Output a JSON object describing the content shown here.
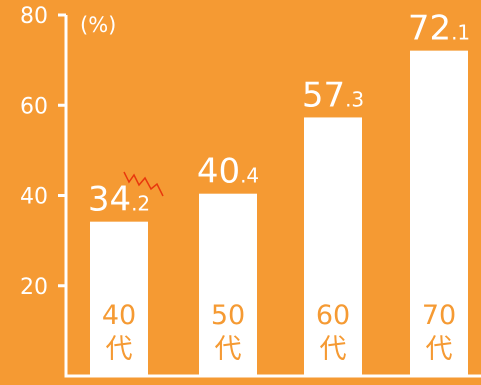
{
  "chart_data": {
    "type": "bar",
    "unit": "(%)",
    "ylim": [
      0,
      80
    ],
    "yticks": [
      20,
      40,
      60,
      80
    ],
    "grid": false,
    "categories": [
      {
        "num": "40",
        "kanji": "代"
      },
      {
        "num": "50",
        "kanji": "代"
      },
      {
        "num": "60",
        "kanji": "代"
      },
      {
        "num": "70",
        "kanji": "代"
      }
    ],
    "values": [
      34.2,
      40.4,
      57.3,
      72.1
    ],
    "value_labels": [
      {
        "int": "34",
        "dec": ".2"
      },
      {
        "int": "40",
        "dec": ".4"
      },
      {
        "int": "57",
        "dec": ".3"
      },
      {
        "int": "72",
        "dec": ".1"
      }
    ],
    "colors": {
      "background": "#F59A33",
      "bar": "#FFFFFF",
      "category_text": "#F59A33",
      "accent_zigzag": "#E8380D"
    }
  }
}
